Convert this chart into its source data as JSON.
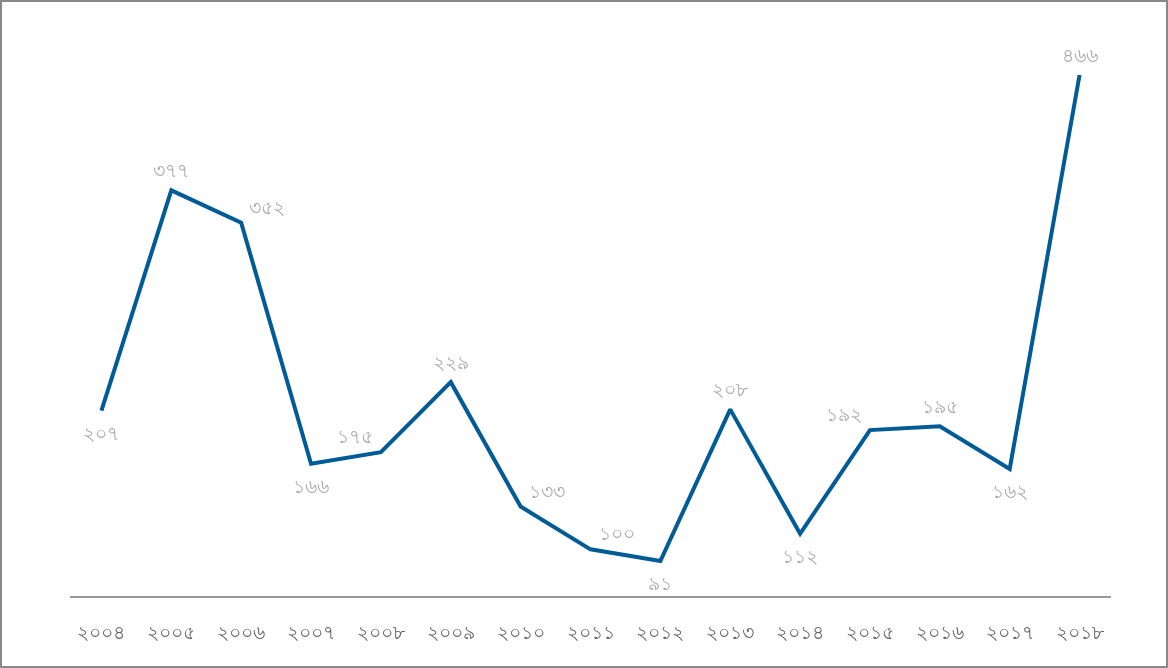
{
  "chart_data": {
    "type": "line",
    "categories": [
      "২০০৪",
      "২০০৫",
      "২০০৬",
      "২০০৭",
      "২০০৮",
      "২০০৯",
      "২০১০",
      "২০১১",
      "২০১২",
      "২০১৩",
      "২০১৪",
      "২০১৫",
      "২০১৬",
      "২০১৭",
      "২০১৮"
    ],
    "series": [
      {
        "color": "#005b96",
        "values": [
          207,
          377,
          352,
          166,
          175,
          229,
          133,
          100,
          91,
          208,
          112,
          192,
          195,
          162,
          466
        ],
        "value_labels": [
          "২০৭",
          "৩৭৭",
          "৩৫২",
          "১৬৬",
          "১৭৫",
          "২২৯",
          "১৩৩",
          "১০০",
          "৯১",
          "২০৮",
          "১১২",
          "১৯২",
          "১৯৫",
          "১৬২",
          "৪৬৬"
        ]
      }
    ],
    "grid": false,
    "line_style": "solid",
    "tick_labels": "x"
  }
}
